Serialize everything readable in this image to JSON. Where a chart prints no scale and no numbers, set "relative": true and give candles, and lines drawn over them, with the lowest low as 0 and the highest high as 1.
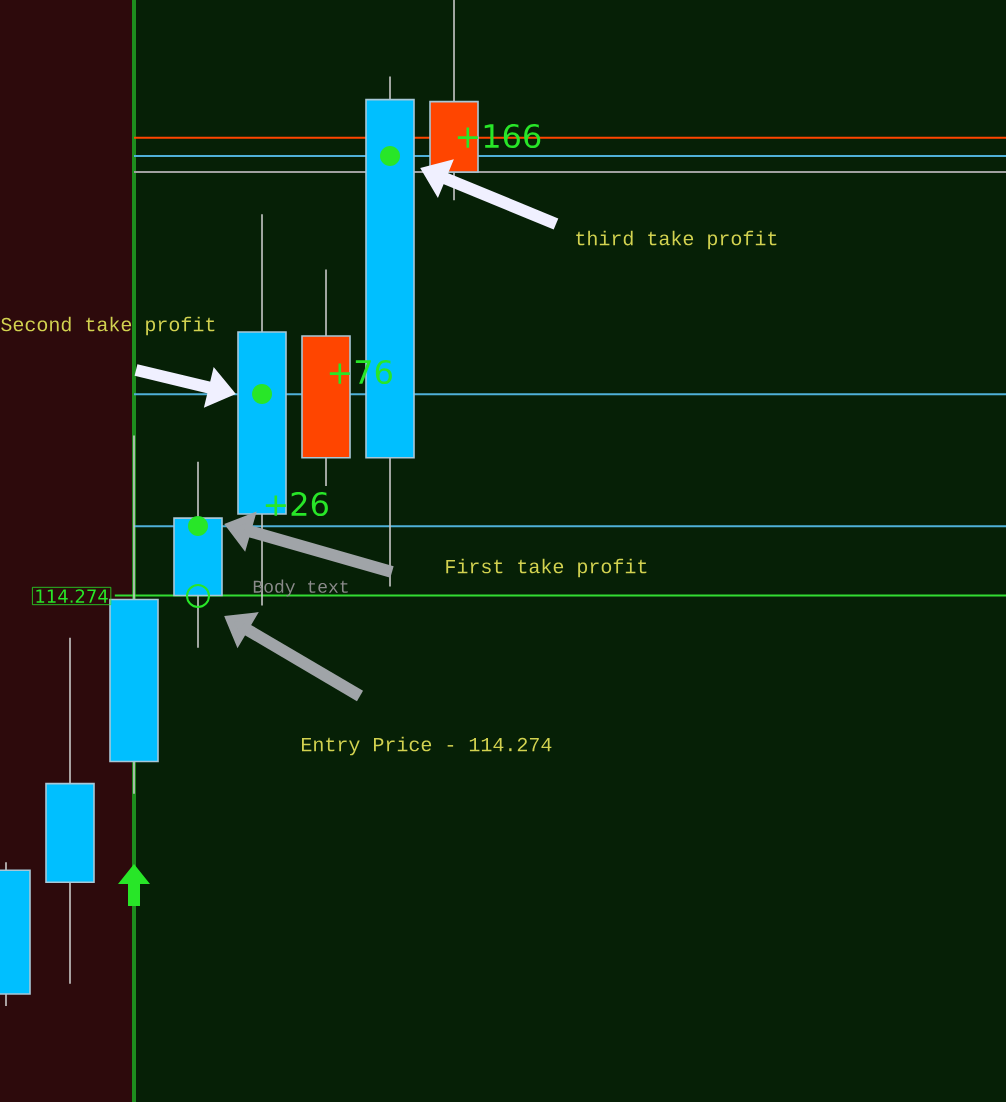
{
  "chart_data": {
    "type": "candlestick",
    "relative": true,
    "categories": [
      null,
      null,
      null,
      null,
      null,
      null,
      null,
      null
    ],
    "ohlc": [
      [
        0.012,
        0.143,
        0,
        0.135
      ],
      [
        0.123,
        0.366,
        0.022,
        0.221
      ],
      [
        0.243,
        0.567,
        0.211,
        0.404
      ],
      [
        0.408,
        0.541,
        0.356,
        0.485
      ],
      [
        0.489,
        0.787,
        0.398,
        0.67
      ],
      [
        0.666,
        0.732,
        0.517,
        0.545
      ],
      [
        0.545,
        0.924,
        0.417,
        0.901
      ],
      [
        0.899,
        1,
        0.801,
        0.829
      ]
    ],
    "colors": [
      "#00bfff",
      "#00bfff",
      "#00bfff",
      "#00bfff",
      "#00bfff",
      "#ff4500",
      "#00bfff",
      "#ff4500"
    ],
    "ref_lines": [
      {
        "axis": "y",
        "value": 0.863,
        "color": "#ff4500"
      },
      {
        "axis": "y",
        "value": 0.845,
        "color": "#4fb0d8"
      },
      {
        "axis": "y",
        "value": 0.829,
        "color": "#a0a0a0"
      },
      {
        "axis": "y",
        "value": 0.608,
        "color": "#4fb0d8"
      },
      {
        "axis": "y",
        "value": 0.477,
        "color": "#4fb0d8"
      },
      {
        "axis": "y",
        "value": 0.408,
        "color": "#32dc32"
      }
    ],
    "annotations": [
      "Second take profit",
      "third take profit",
      "First take profit",
      "Entry Price - 114.274",
      "+26",
      "+76",
      "+166",
      "Body text",
      "114.274"
    ]
  }
}
